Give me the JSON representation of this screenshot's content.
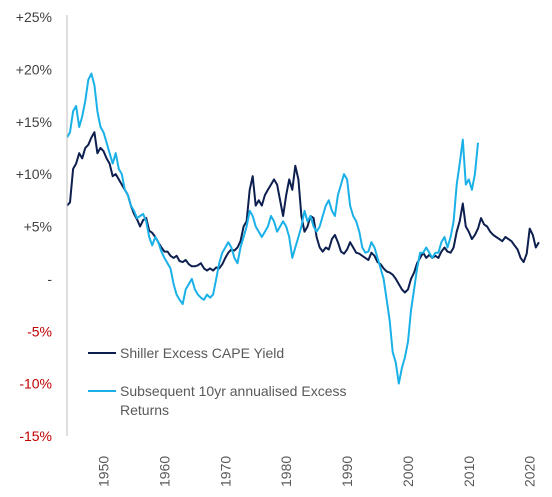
{
  "chart_data": {
    "type": "line",
    "title": "",
    "xlabel": "",
    "ylabel": "",
    "x_range": [
      1944,
      2023
    ],
    "ylim": [
      -15,
      25
    ],
    "y_ticks": [
      {
        "value": 25,
        "label": "+25%",
        "color": "#404040"
      },
      {
        "value": 20,
        "label": "+20%",
        "color": "#404040"
      },
      {
        "value": 15,
        "label": "+15%",
        "color": "#404040"
      },
      {
        "value": 10,
        "label": "+10%",
        "color": "#404040"
      },
      {
        "value": 5,
        "label": "+5%",
        "color": "#404040"
      },
      {
        "value": 0,
        "label": "-",
        "color": "#404040"
      },
      {
        "value": -5,
        "label": "-5%",
        "color": "#c00000"
      },
      {
        "value": -10,
        "label": "-10%",
        "color": "#c00000"
      },
      {
        "value": -15,
        "label": "-15%",
        "color": "#c00000"
      }
    ],
    "x_ticks": [
      {
        "value": 1950,
        "label": "1950"
      },
      {
        "value": 1960,
        "label": "1960"
      },
      {
        "value": 1970,
        "label": "1970"
      },
      {
        "value": 1980,
        "label": "1980"
      },
      {
        "value": 1990,
        "label": "1990"
      },
      {
        "value": 2000,
        "label": "2000"
      },
      {
        "value": 2010,
        "label": "2010"
      },
      {
        "value": 2020,
        "label": "2020"
      }
    ],
    "grid": false,
    "legend_position": "bottom-left",
    "series": [
      {
        "name": "Shiller Excess CAPE Yield",
        "color": "#0d1f4f",
        "points": [
          [
            1944.0,
            7.0
          ],
          [
            1944.5,
            7.3
          ],
          [
            1945.0,
            10.5
          ],
          [
            1945.5,
            11.0
          ],
          [
            1946.0,
            12.0
          ],
          [
            1946.5,
            11.5
          ],
          [
            1947.0,
            12.5
          ],
          [
            1947.5,
            12.8
          ],
          [
            1948.0,
            13.5
          ],
          [
            1948.5,
            14.0
          ],
          [
            1949.0,
            12.0
          ],
          [
            1949.5,
            12.5
          ],
          [
            1950.0,
            12.2
          ],
          [
            1950.5,
            11.5
          ],
          [
            1951.0,
            11.0
          ],
          [
            1951.5,
            9.8
          ],
          [
            1952.0,
            10.0
          ],
          [
            1952.5,
            9.5
          ],
          [
            1953.0,
            9.0
          ],
          [
            1953.5,
            8.5
          ],
          [
            1954.0,
            8.0
          ],
          [
            1954.5,
            7.0
          ],
          [
            1955.0,
            6.2
          ],
          [
            1955.5,
            5.7
          ],
          [
            1956.0,
            5.0
          ],
          [
            1956.5,
            5.6
          ],
          [
            1957.0,
            5.8
          ],
          [
            1957.5,
            4.6
          ],
          [
            1958.0,
            4.4
          ],
          [
            1958.5,
            4.0
          ],
          [
            1959.0,
            3.5
          ],
          [
            1959.5,
            3.0
          ],
          [
            1960.0,
            2.6
          ],
          [
            1960.5,
            2.6
          ],
          [
            1961.0,
            2.2
          ],
          [
            1961.5,
            2.0
          ],
          [
            1962.0,
            2.2
          ],
          [
            1962.5,
            1.7
          ],
          [
            1963.0,
            1.6
          ],
          [
            1963.5,
            1.8
          ],
          [
            1964.0,
            1.4
          ],
          [
            1964.5,
            1.2
          ],
          [
            1965.0,
            1.2
          ],
          [
            1965.5,
            1.3
          ],
          [
            1966.0,
            1.5
          ],
          [
            1966.5,
            1.0
          ],
          [
            1967.0,
            0.8
          ],
          [
            1967.5,
            1.0
          ],
          [
            1968.0,
            0.8
          ],
          [
            1968.5,
            1.1
          ],
          [
            1969.0,
            1.0
          ],
          [
            1969.5,
            1.4
          ],
          [
            1970.0,
            2.0
          ],
          [
            1970.5,
            2.5
          ],
          [
            1971.0,
            2.8
          ],
          [
            1971.5,
            2.7
          ],
          [
            1972.0,
            3.0
          ],
          [
            1972.5,
            3.6
          ],
          [
            1973.0,
            5.0
          ],
          [
            1973.5,
            5.5
          ],
          [
            1974.0,
            8.5
          ],
          [
            1974.5,
            9.8
          ],
          [
            1975.0,
            7.0
          ],
          [
            1975.5,
            7.5
          ],
          [
            1976.0,
            7.0
          ],
          [
            1976.5,
            8.0
          ],
          [
            1977.0,
            8.5
          ],
          [
            1977.5,
            9.0
          ],
          [
            1978.0,
            9.5
          ],
          [
            1978.5,
            9.0
          ],
          [
            1979.0,
            7.5
          ],
          [
            1979.5,
            6.0
          ],
          [
            1980.0,
            8.0
          ],
          [
            1980.5,
            9.5
          ],
          [
            1981.0,
            8.5
          ],
          [
            1981.5,
            10.8
          ],
          [
            1982.0,
            9.5
          ],
          [
            1982.5,
            6.0
          ],
          [
            1983.0,
            4.5
          ],
          [
            1983.5,
            5.0
          ],
          [
            1984.0,
            6.0
          ],
          [
            1984.5,
            5.8
          ],
          [
            1985.0,
            4.0
          ],
          [
            1985.5,
            3.0
          ],
          [
            1986.0,
            2.6
          ],
          [
            1986.5,
            3.0
          ],
          [
            1987.0,
            2.8
          ],
          [
            1987.5,
            3.8
          ],
          [
            1988.0,
            4.2
          ],
          [
            1988.5,
            3.5
          ],
          [
            1989.0,
            2.6
          ],
          [
            1989.5,
            2.4
          ],
          [
            1990.0,
            2.8
          ],
          [
            1990.5,
            3.5
          ],
          [
            1991.0,
            3.0
          ],
          [
            1991.5,
            2.5
          ],
          [
            1992.0,
            2.4
          ],
          [
            1992.5,
            2.2
          ],
          [
            1993.0,
            2.0
          ],
          [
            1993.5,
            1.8
          ],
          [
            1994.0,
            2.5
          ],
          [
            1994.5,
            2.2
          ],
          [
            1995.0,
            1.6
          ],
          [
            1995.5,
            1.4
          ],
          [
            1996.0,
            1.0
          ],
          [
            1996.5,
            0.7
          ],
          [
            1997.0,
            0.6
          ],
          [
            1997.5,
            0.4
          ],
          [
            1998.0,
            0.0
          ],
          [
            1998.5,
            -0.5
          ],
          [
            1999.0,
            -1.0
          ],
          [
            1999.5,
            -1.3
          ],
          [
            2000.0,
            -1.0
          ],
          [
            2000.5,
            0.0
          ],
          [
            2001.0,
            0.6
          ],
          [
            2001.5,
            1.5
          ],
          [
            2002.0,
            2.0
          ],
          [
            2002.5,
            2.5
          ],
          [
            2003.0,
            2.0
          ],
          [
            2003.5,
            2.3
          ],
          [
            2004.0,
            2.0
          ],
          [
            2004.5,
            2.2
          ],
          [
            2005.0,
            2.0
          ],
          [
            2005.5,
            2.6
          ],
          [
            2006.0,
            3.0
          ],
          [
            2006.5,
            2.6
          ],
          [
            2007.0,
            2.5
          ],
          [
            2007.5,
            3.0
          ],
          [
            2008.0,
            4.5
          ],
          [
            2008.5,
            5.5
          ],
          [
            2009.0,
            7.2
          ],
          [
            2009.5,
            5.0
          ],
          [
            2010.0,
            4.5
          ],
          [
            2010.5,
            3.8
          ],
          [
            2011.0,
            4.2
          ],
          [
            2011.5,
            4.8
          ],
          [
            2012.0,
            5.8
          ],
          [
            2012.5,
            5.2
          ],
          [
            2013.0,
            5.0
          ],
          [
            2013.5,
            4.5
          ],
          [
            2014.0,
            4.2
          ],
          [
            2014.5,
            4.0
          ],
          [
            2015.0,
            3.8
          ],
          [
            2015.5,
            3.6
          ],
          [
            2016.0,
            4.0
          ],
          [
            2016.5,
            3.8
          ],
          [
            2017.0,
            3.6
          ],
          [
            2017.5,
            3.2
          ],
          [
            2018.0,
            2.8
          ],
          [
            2018.5,
            2.0
          ],
          [
            2019.0,
            1.6
          ],
          [
            2019.5,
            2.4
          ],
          [
            2020.0,
            4.8
          ],
          [
            2020.5,
            4.2
          ],
          [
            2021.0,
            3.0
          ],
          [
            2021.5,
            3.5
          ]
        ]
      },
      {
        "name": "Subsequent 10yr annualised Excess Returns",
        "color": "#1ab0e8",
        "points": [
          [
            1944.0,
            13.5
          ],
          [
            1944.5,
            14.0
          ],
          [
            1945.0,
            16.0
          ],
          [
            1945.5,
            16.5
          ],
          [
            1946.0,
            14.5
          ],
          [
            1946.5,
            15.5
          ],
          [
            1947.0,
            17.0
          ],
          [
            1947.5,
            19.0
          ],
          [
            1948.0,
            19.6
          ],
          [
            1948.5,
            18.5
          ],
          [
            1949.0,
            16.0
          ],
          [
            1949.5,
            14.5
          ],
          [
            1950.0,
            14.0
          ],
          [
            1950.5,
            13.0
          ],
          [
            1951.0,
            12.0
          ],
          [
            1951.5,
            11.0
          ],
          [
            1952.0,
            12.0
          ],
          [
            1952.5,
            10.5
          ],
          [
            1953.0,
            10.0
          ],
          [
            1953.5,
            8.5
          ],
          [
            1954.0,
            8.0
          ],
          [
            1954.5,
            7.0
          ],
          [
            1955.0,
            6.5
          ],
          [
            1955.5,
            5.8
          ],
          [
            1956.0,
            6.0
          ],
          [
            1956.5,
            6.2
          ],
          [
            1957.0,
            5.5
          ],
          [
            1957.5,
            4.0
          ],
          [
            1958.0,
            3.2
          ],
          [
            1958.5,
            4.0
          ],
          [
            1959.0,
            3.5
          ],
          [
            1959.5,
            2.6
          ],
          [
            1960.0,
            2.0
          ],
          [
            1960.5,
            1.5
          ],
          [
            1961.0,
            1.0
          ],
          [
            1961.5,
            -0.5
          ],
          [
            1962.0,
            -1.5
          ],
          [
            1962.5,
            -2.0
          ],
          [
            1963.0,
            -2.4
          ],
          [
            1963.5,
            -1.0
          ],
          [
            1964.0,
            -0.5
          ],
          [
            1964.5,
            0.0
          ],
          [
            1965.0,
            -1.0
          ],
          [
            1965.5,
            -1.5
          ],
          [
            1966.0,
            -1.8
          ],
          [
            1966.5,
            -2.0
          ],
          [
            1967.0,
            -1.5
          ],
          [
            1967.5,
            -1.8
          ],
          [
            1968.0,
            -1.5
          ],
          [
            1968.5,
            0.0
          ],
          [
            1969.0,
            1.5
          ],
          [
            1969.5,
            2.5
          ],
          [
            1970.0,
            3.0
          ],
          [
            1970.5,
            3.5
          ],
          [
            1971.0,
            3.0
          ],
          [
            1971.5,
            2.0
          ],
          [
            1972.0,
            1.5
          ],
          [
            1972.5,
            3.0
          ],
          [
            1973.0,
            4.0
          ],
          [
            1973.5,
            5.0
          ],
          [
            1974.0,
            6.5
          ],
          [
            1974.5,
            6.0
          ],
          [
            1975.0,
            5.0
          ],
          [
            1975.5,
            4.5
          ],
          [
            1976.0,
            4.0
          ],
          [
            1976.5,
            4.5
          ],
          [
            1977.0,
            5.0
          ],
          [
            1977.5,
            6.0
          ],
          [
            1978.0,
            5.5
          ],
          [
            1978.5,
            4.5
          ],
          [
            1979.0,
            5.0
          ],
          [
            1979.5,
            5.5
          ],
          [
            1980.0,
            5.0
          ],
          [
            1980.5,
            4.0
          ],
          [
            1981.0,
            2.0
          ],
          [
            1981.5,
            3.0
          ],
          [
            1982.0,
            4.0
          ],
          [
            1982.5,
            5.0
          ],
          [
            1983.0,
            6.5
          ],
          [
            1983.5,
            5.5
          ],
          [
            1984.0,
            6.0
          ],
          [
            1984.5,
            5.0
          ],
          [
            1985.0,
            4.5
          ],
          [
            1985.5,
            5.0
          ],
          [
            1986.0,
            6.0
          ],
          [
            1986.5,
            7.0
          ],
          [
            1987.0,
            7.5
          ],
          [
            1987.5,
            6.5
          ],
          [
            1988.0,
            6.0
          ],
          [
            1988.5,
            8.0
          ],
          [
            1989.0,
            9.0
          ],
          [
            1989.5,
            10.0
          ],
          [
            1990.0,
            9.5
          ],
          [
            1990.5,
            7.0
          ],
          [
            1991.0,
            6.0
          ],
          [
            1991.5,
            5.5
          ],
          [
            1992.0,
            4.5
          ],
          [
            1992.5,
            3.0
          ],
          [
            1993.0,
            2.5
          ],
          [
            1993.5,
            2.6
          ],
          [
            1994.0,
            3.5
          ],
          [
            1994.5,
            3.0
          ],
          [
            1995.0,
            2.0
          ],
          [
            1995.5,
            1.0
          ],
          [
            1996.0,
            0.0
          ],
          [
            1996.5,
            -2.0
          ],
          [
            1997.0,
            -4.0
          ],
          [
            1997.5,
            -7.0
          ],
          [
            1998.0,
            -8.0
          ],
          [
            1998.5,
            -10.0
          ],
          [
            1999.0,
            -8.5
          ],
          [
            1999.5,
            -7.5
          ],
          [
            2000.0,
            -6.0
          ],
          [
            2000.5,
            -3.0
          ],
          [
            2001.0,
            -1.0
          ],
          [
            2001.5,
            1.0
          ],
          [
            2002.0,
            2.5
          ],
          [
            2002.5,
            2.5
          ],
          [
            2003.0,
            3.0
          ],
          [
            2003.5,
            2.5
          ],
          [
            2004.0,
            2.0
          ],
          [
            2004.5,
            2.5
          ],
          [
            2005.0,
            2.5
          ],
          [
            2005.5,
            3.5
          ],
          [
            2006.0,
            4.0
          ],
          [
            2006.5,
            3.0
          ],
          [
            2007.0,
            4.0
          ],
          [
            2007.5,
            5.5
          ],
          [
            2008.0,
            9.0
          ],
          [
            2008.5,
            11.0
          ],
          [
            2009.0,
            13.3
          ],
          [
            2009.5,
            9.0
          ],
          [
            2010.0,
            9.5
          ],
          [
            2010.5,
            8.5
          ],
          [
            2011.0,
            10.0
          ],
          [
            2011.5,
            13.0
          ]
        ]
      }
    ]
  }
}
